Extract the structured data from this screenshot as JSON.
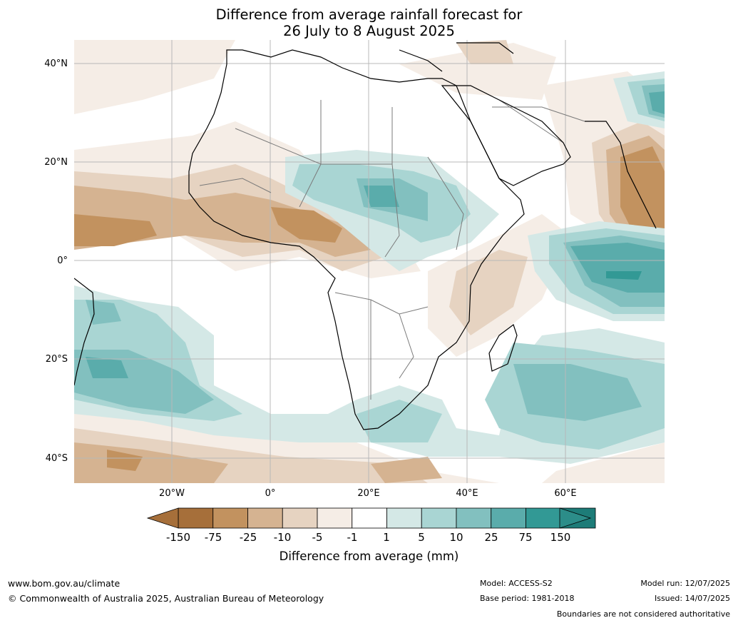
{
  "title": {
    "line1": "Difference from average rainfall forecast for",
    "line2": "26 July to 8 August 2025"
  },
  "axes": {
    "lat_labels": [
      "40°N",
      "20°N",
      "0°",
      "20°S",
      "40°S"
    ],
    "lon_labels": [
      "20°W",
      "0°",
      "20°E",
      "40°E",
      "60°E"
    ]
  },
  "colorbar": {
    "title": "Difference from average (mm)",
    "labels": [
      "-150",
      "-75",
      "-25",
      "-10",
      "-5",
      "-1",
      "1",
      "5",
      "10",
      "25",
      "75",
      "150"
    ],
    "colors": [
      "#a66f3a",
      "#c2925f",
      "#d5b391",
      "#e6d3c1",
      "#f5ede6",
      "#ffffff",
      "#d4e8e6",
      "#a9d5d3",
      "#82c0bf",
      "#5aacab",
      "#329995",
      "#1d7c78"
    ],
    "extend_low_color": "#a66f3a",
    "extend_high_color": "#2c8d89"
  },
  "footer": {
    "url": "www.bom.gov.au/climate",
    "copyright": "© Commonwealth of Australia 2025, Australian Bureau of Meteorology",
    "model": "Model: ACCESS-S2",
    "base_period": "Base period: 1981-2018",
    "model_run": "Model run: 12/07/2025",
    "issued": "Issued: 14/07/2025",
    "disclaimer": "Boundaries are not considered authoritative"
  }
}
